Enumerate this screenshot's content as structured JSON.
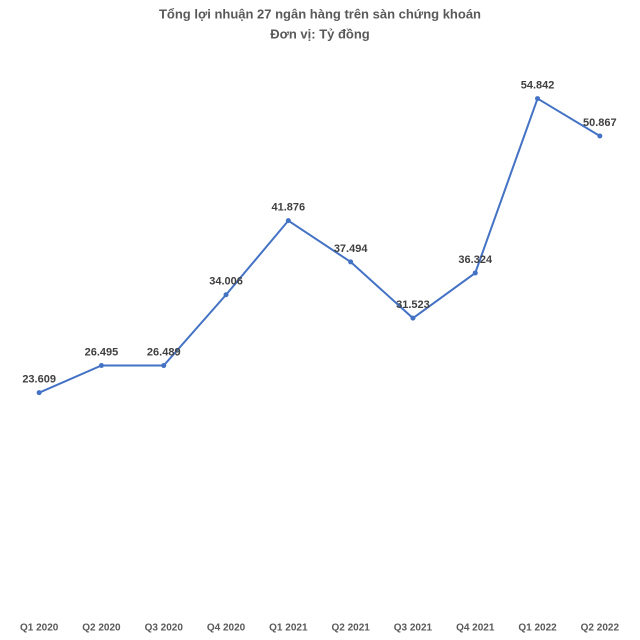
{
  "chart_data": {
    "type": "line",
    "title": "Tổng lợi nhuận  27 ngân hàng trên sàn chứng khoán",
    "subtitle": "Đơn vị: Tỷ đồng",
    "categories": [
      "Q1 2020",
      "Q2 2020",
      "Q3 2020",
      "Q4 2020",
      "Q1 2021",
      "Q2 2021",
      "Q3 2021",
      "Q4 2021",
      "Q1 2022",
      "Q2 2022"
    ],
    "values": [
      23609,
      26495,
      26489,
      34006,
      41876,
      37494,
      31523,
      36324,
      54842,
      50867
    ],
    "value_labels": [
      "23.609",
      "26.495",
      "26.489",
      "34.006",
      "41.876",
      "37.494",
      "31.523",
      "36.324",
      "54.842",
      "50.867"
    ],
    "color": "#4472c4",
    "ylim": [
      0,
      60000
    ],
    "grid": false
  }
}
